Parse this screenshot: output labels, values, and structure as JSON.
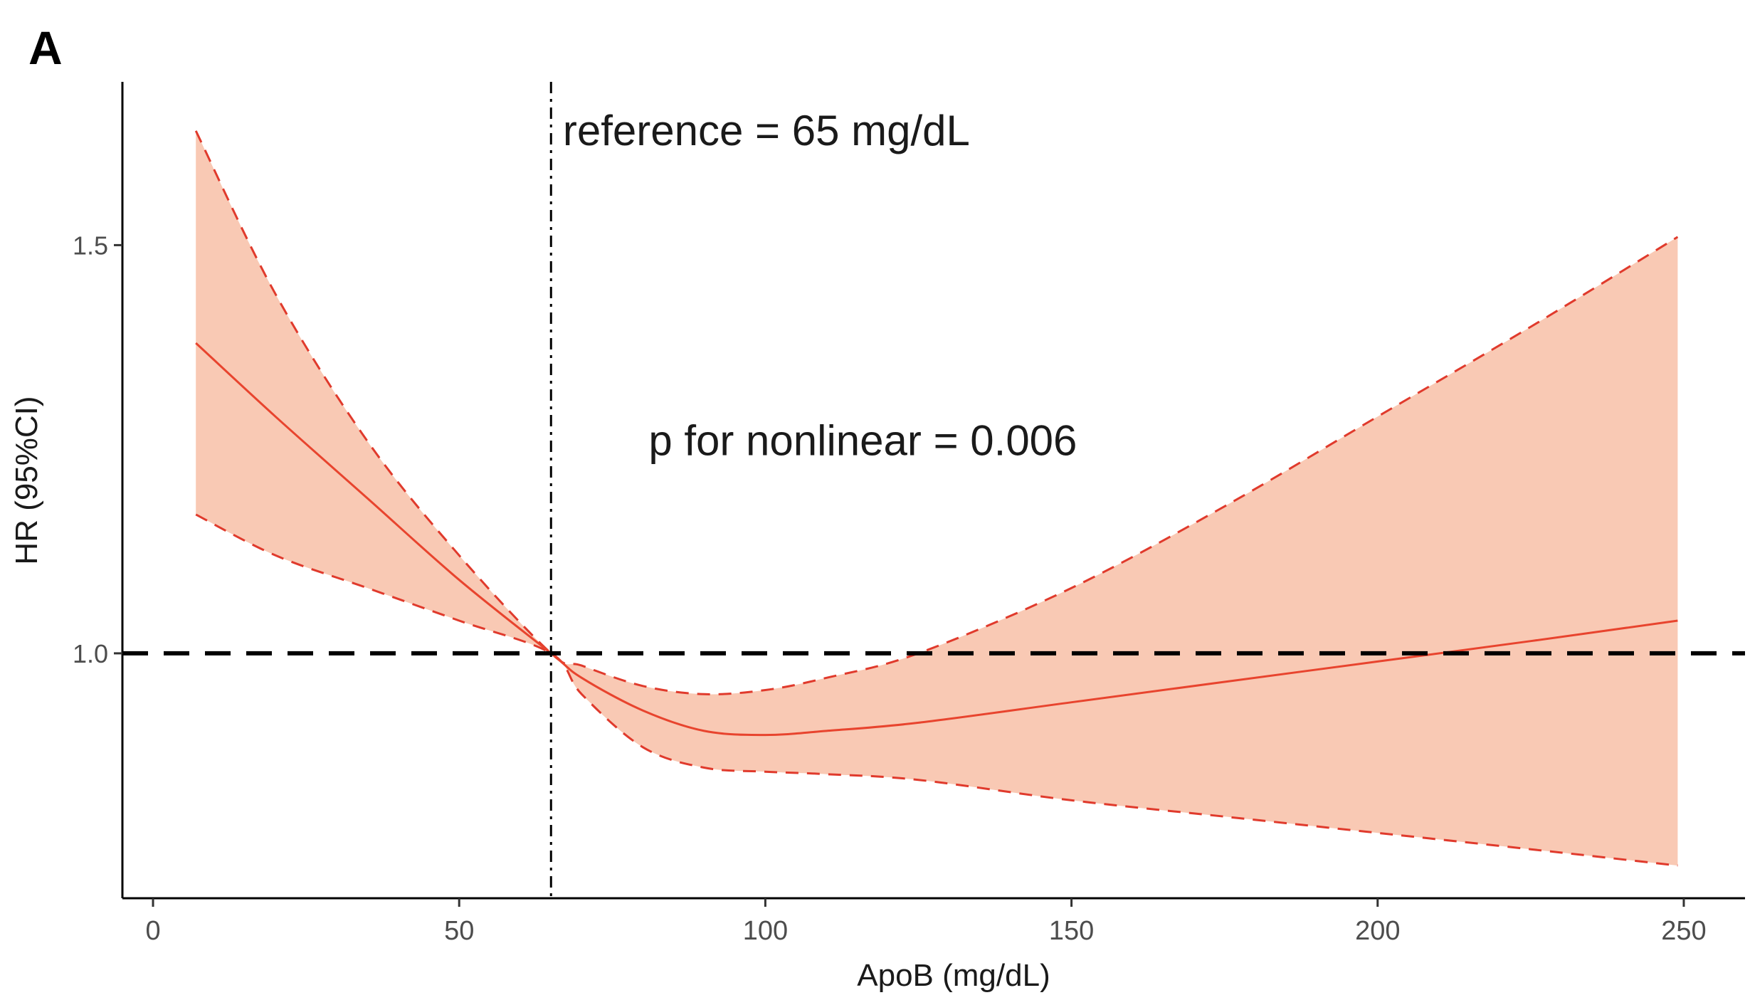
{
  "panel_label": "A",
  "chart_data": {
    "type": "line",
    "xlabel": "ApoB (mg/dL)",
    "ylabel": "HR (95%CI)",
    "xlim": [
      -5,
      260
    ],
    "ylim": [
      0.7,
      1.7
    ],
    "x_ticks": [
      0,
      50,
      100,
      150,
      200,
      250
    ],
    "x_tick_labels": [
      "0",
      "50",
      "100",
      "150",
      "200",
      "250"
    ],
    "y_ticks": [
      1.0,
      1.5
    ],
    "y_tick_labels": [
      "1.0",
      "1.5"
    ],
    "grid": false,
    "legend": "none",
    "reference_line": {
      "y": 1.0,
      "style": "dashed",
      "color": "#000000"
    },
    "reference_vline": {
      "x": 65,
      "style": "dashdot",
      "color": "#000000"
    },
    "annotations": [
      {
        "text": "reference = 65 mg/dL",
        "x": 66,
        "y": 1.64
      },
      {
        "text": "p for nonlinear = 0.006",
        "x": 80,
        "y": 1.26
      }
    ],
    "colors": {
      "line": "#e8442e",
      "band": "#f9c9b4",
      "band_edge": "#e03a2c",
      "axis": "#000000"
    },
    "x": [
      7,
      20,
      35,
      50,
      65,
      70,
      80,
      90,
      100,
      110,
      125,
      150,
      175,
      200,
      225,
      249
    ],
    "hr": [
      1.38,
      1.29,
      1.19,
      1.09,
      1.0,
      0.97,
      0.93,
      0.905,
      0.9,
      0.905,
      0.915,
      0.94,
      0.965,
      0.99,
      1.015,
      1.04
    ],
    "lower": [
      1.17,
      1.12,
      1.08,
      1.04,
      1.0,
      0.95,
      0.885,
      0.86,
      0.855,
      0.852,
      0.845,
      0.82,
      0.8,
      0.78,
      0.76,
      0.74
    ],
    "upper": [
      1.64,
      1.44,
      1.26,
      1.12,
      1.0,
      0.985,
      0.96,
      0.95,
      0.955,
      0.97,
      1.0,
      1.08,
      1.18,
      1.29,
      1.4,
      1.51
    ]
  }
}
